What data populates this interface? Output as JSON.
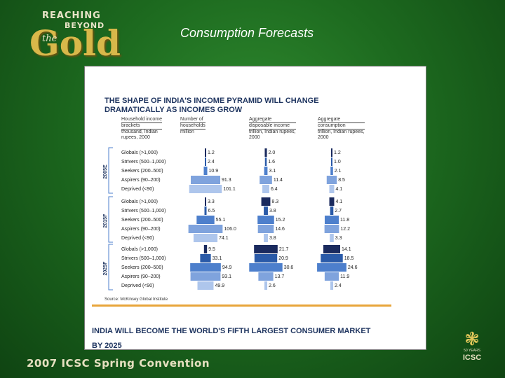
{
  "logo": {
    "line1": "REACHING",
    "line2": "BEYOND",
    "the": "the",
    "gold": "Gold"
  },
  "slide_title": "Consumption Forecasts",
  "chart": {
    "title_line1": "THE SHAPE OF INDIA'S INCOME PYRAMID WILL CHANGE",
    "title_line2": "DRAMATICALLY AS INCOMES GROW",
    "columns": [
      {
        "line1": "Household income",
        "line2": "brackets",
        "line3": "thousand, Indian",
        "line4": "rupees, 2000"
      },
      {
        "line1": "Number of",
        "line2": "households",
        "line3": "million",
        "line4": ""
      },
      {
        "line1": "Aggregate",
        "line2": "disposable income",
        "line3": "trillion, Indian rupees,",
        "line4": "2000"
      },
      {
        "line1": "Aggregate",
        "line2": "consumption",
        "line3": "trillion, Indian rupees,",
        "line4": "2000"
      }
    ],
    "source": "Source: McKinsey Global Institute"
  },
  "chart_data": {
    "type": "bar",
    "categories": [
      "Globals (>1,000)",
      "Strivers (500–1,000)",
      "Seekers (200–500)",
      "Aspirers (90–200)",
      "Deprived (<90)"
    ],
    "groups": [
      {
        "year": "2005E",
        "households": [
          1.2,
          2.4,
          10.9,
          91.3,
          101.1
        ],
        "income": [
          2.0,
          1.6,
          3.1,
          11.4,
          6.4
        ],
        "consumption": [
          1.2,
          1.0,
          2.1,
          8.5,
          4.1
        ]
      },
      {
        "year": "2015F",
        "households": [
          3.3,
          6.5,
          55.1,
          106.0,
          74.1
        ],
        "income": [
          8.3,
          3.8,
          15.2,
          14.6,
          3.8
        ],
        "consumption": [
          4.1,
          2.7,
          11.8,
          12.2,
          3.3
        ]
      },
      {
        "year": "2025F",
        "households": [
          9.5,
          33.1,
          94.9,
          93.1,
          49.9
        ],
        "income": [
          21.7,
          20.9,
          30.6,
          13.7,
          2.6
        ],
        "consumption": [
          14.1,
          18.5,
          24.6,
          11.9,
          2.4
        ]
      }
    ],
    "colors": [
      "#1a2a5e",
      "#2a5aa8",
      "#4d7fcc",
      "#7fa3dd",
      "#aec6ec"
    ]
  },
  "bottom_heading_line1": "INDIA WILL BECOME THE WORLD'S FIFTH LARGEST CONSUMER MARKET",
  "bottom_heading_line2": "BY 2025",
  "footer": "2007 ICSC Spring Convention",
  "icsc": {
    "years": "50 YEARS",
    "name": "ICSC"
  }
}
